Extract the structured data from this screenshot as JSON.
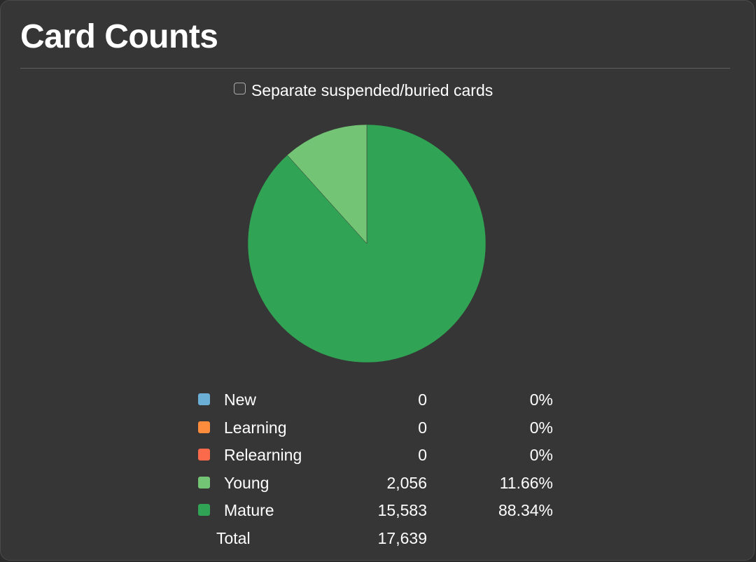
{
  "header": {
    "title": "Card Counts"
  },
  "options": {
    "separate_label": "Separate suspended/buried cards",
    "separate_checked": false
  },
  "colors": {
    "new": "#6baed6",
    "learning": "#fd8d3c",
    "relearning": "#fb6a4a",
    "young": "#74c476",
    "mature": "#31a354"
  },
  "legend": {
    "rows": [
      {
        "label": "New",
        "count": "0",
        "pct": "0%"
      },
      {
        "label": "Learning",
        "count": "0",
        "pct": "0%"
      },
      {
        "label": "Relearning",
        "count": "0",
        "pct": "0%"
      },
      {
        "label": "Young",
        "count": "2,056",
        "pct": "11.66%"
      },
      {
        "label": "Mature",
        "count": "15,583",
        "pct": "88.34%"
      }
    ],
    "total_label": "Total",
    "total_count": "17,639"
  },
  "chart_data": {
    "type": "pie",
    "categories": [
      "New",
      "Learning",
      "Relearning",
      "Young",
      "Mature"
    ],
    "values": [
      0,
      0,
      0,
      2056,
      15583
    ],
    "percentages": [
      0,
      0,
      0,
      11.66,
      88.34
    ],
    "colors": [
      "#6baed6",
      "#fd8d3c",
      "#fb6a4a",
      "#74c476",
      "#31a354"
    ],
    "title": "Card Counts",
    "legend_position": "bottom",
    "total": 17639
  }
}
